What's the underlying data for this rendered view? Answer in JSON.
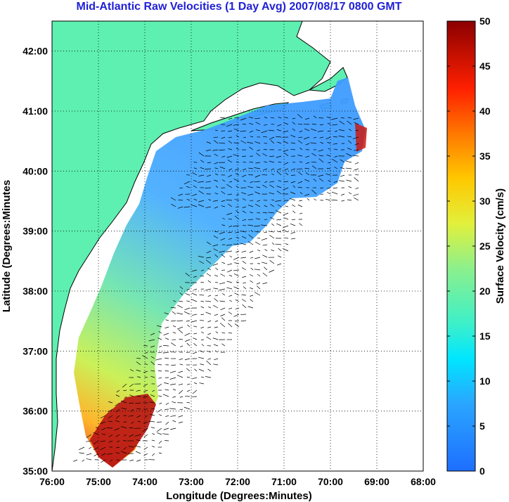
{
  "title": "Mid-Atlantic Raw Velocities (1 Day Avg) 2007/08/17 0800 GMT",
  "map": {
    "xlabel": "Longitude (Degrees:Minutes)",
    "ylabel": "Latitude (Degrees:Minutes",
    "lon_ticks": [
      "76:00",
      "75:00",
      "74:00",
      "73:00",
      "72:00",
      "71:00",
      "70:00",
      "69:00",
      "68:00"
    ],
    "lat_ticks": [
      "35:00",
      "36:00",
      "37:00",
      "38:00",
      "39:00",
      "40:00",
      "41:00",
      "42:00"
    ],
    "lon_range": [
      -76,
      -68
    ],
    "lat_range": [
      35,
      42.5
    ],
    "grid": "dotted"
  },
  "colorbar": {
    "label": "Surface Velocity (cm/s)",
    "ticks": [
      "0",
      "5",
      "10",
      "15",
      "20",
      "25",
      "30",
      "35",
      "40",
      "45",
      "50"
    ],
    "range": [
      0,
      50
    ]
  },
  "colors": {
    "land": "#5ef0b0",
    "title": "#1f1fd6"
  }
}
